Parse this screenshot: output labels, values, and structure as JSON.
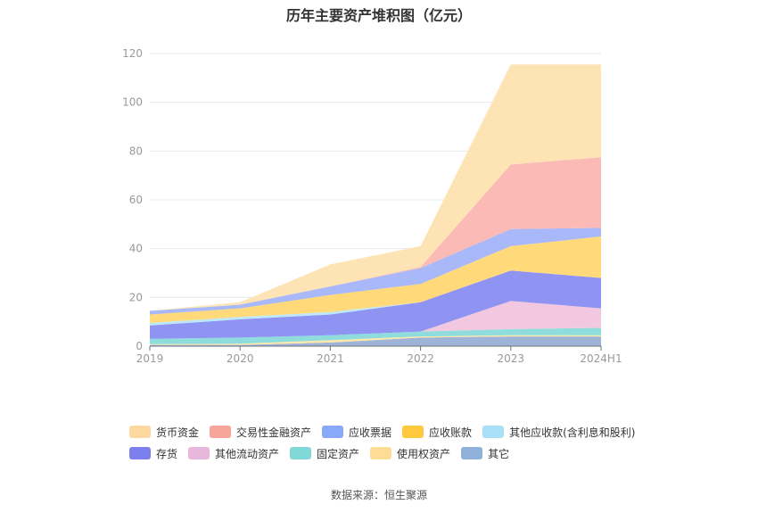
{
  "title": "历年主要资产堆积图（亿元）",
  "source": "数据来源：恒生聚源",
  "chart_data": {
    "type": "area",
    "stacked": true,
    "categories": [
      "2019",
      "2020",
      "2021",
      "2022",
      "2023",
      "2024H1"
    ],
    "ylim": [
      0,
      120
    ],
    "yticks": [
      0,
      20,
      40,
      60,
      80,
      100,
      120
    ],
    "grid": true,
    "legend_position": "bottom",
    "series": [
      {
        "name": "其它",
        "color": "#9db4d8",
        "values": [
          0.5,
          0.5,
          1.5,
          3.5,
          4,
          4
        ]
      },
      {
        "name": "使用权资产",
        "color": "#ffe7a8",
        "values": [
          0.3,
          0.5,
          1,
          0.5,
          0.5,
          0.5
        ]
      },
      {
        "name": "固定资产",
        "color": "#8fdcdc",
        "values": [
          2.2,
          2.5,
          2,
          2,
          2.5,
          3
        ]
      },
      {
        "name": "其他流动资产",
        "color": "#f2c8e0",
        "values": [
          0,
          0,
          0,
          0,
          11.5,
          8
        ]
      },
      {
        "name": "存货",
        "color": "#8f94f2",
        "values": [
          5.5,
          7.5,
          8.5,
          12,
          12.5,
          12.5
        ]
      },
      {
        "name": "其他应收款(含利息和股利)",
        "color": "#bde8fb",
        "values": [
          1,
          1,
          1,
          0,
          0,
          0
        ]
      },
      {
        "name": "应收账款",
        "color": "#ffd97a",
        "values": [
          3.5,
          3.5,
          7,
          7.5,
          10,
          17
        ]
      },
      {
        "name": "应收票据",
        "color": "#a8b8f8",
        "values": [
          1.5,
          1.5,
          3.5,
          6.5,
          7,
          3.5
        ]
      },
      {
        "name": "交易性金融资产",
        "color": "#fbbab5",
        "values": [
          0,
          0,
          0,
          0.5,
          26.5,
          29
        ]
      },
      {
        "name": "货币资金",
        "color": "#fee3b5",
        "values": [
          0,
          1,
          9,
          8.5,
          41,
          38
        ]
      }
    ]
  },
  "legend": {
    "row1": [
      {
        "name": "货币资金",
        "color": "#fdd9a0"
      },
      {
        "name": "交易性金融资产",
        "color": "#f7a59b"
      },
      {
        "name": "应收票据",
        "color": "#88a8f8"
      },
      {
        "name": "应收账款",
        "color": "#ffc83d"
      },
      {
        "name": "其他应收款(含利息和股利)",
        "color": "#a8e0f8"
      }
    ],
    "row2": [
      {
        "name": "存货",
        "color": "#7b80ee"
      },
      {
        "name": "其他流动资产",
        "color": "#e8b8dc"
      },
      {
        "name": "固定资产",
        "color": "#82d8d8"
      },
      {
        "name": "使用权资产",
        "color": "#fddc95"
      },
      {
        "name": "其它",
        "color": "#8fb0d8"
      }
    ]
  }
}
